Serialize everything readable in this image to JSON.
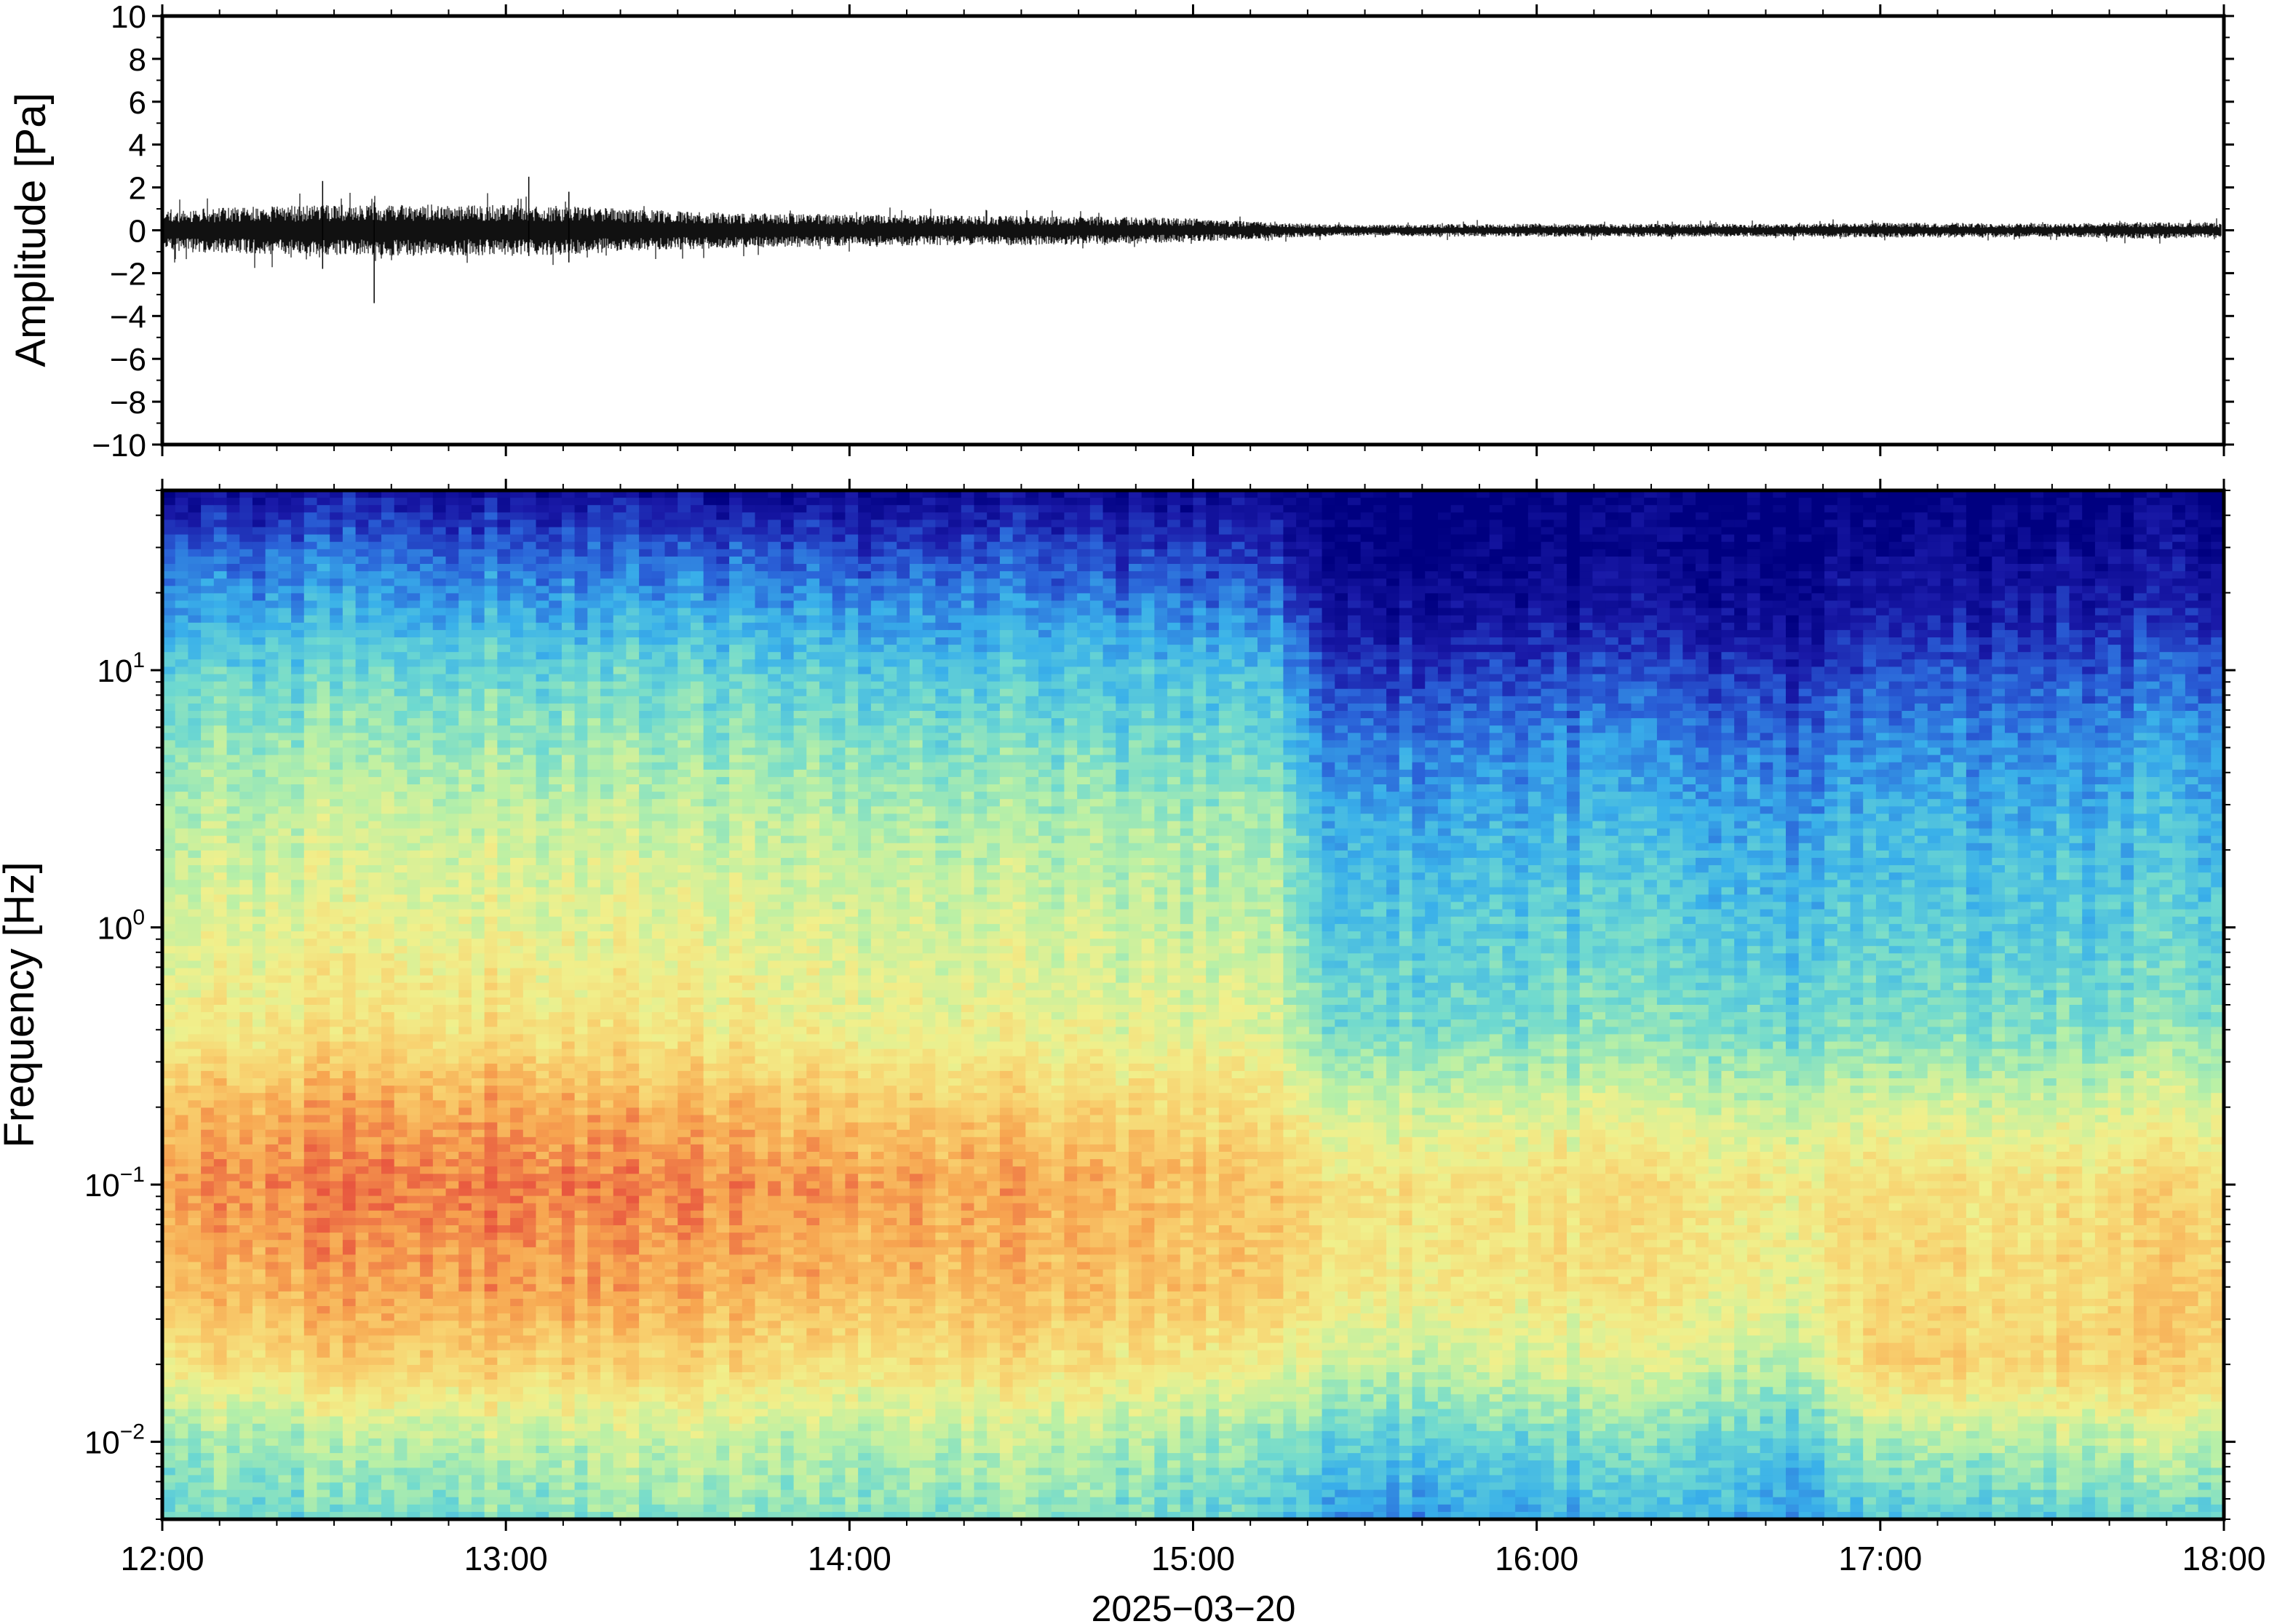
{
  "chart_data": [
    {
      "type": "line",
      "ylabel": "Amplitude [Pa]",
      "ylim": [
        -10,
        10
      ],
      "y_ticks": [
        "10",
        "8",
        "6",
        "4",
        "2",
        "0",
        "−2",
        "−4",
        "−6",
        "−8",
        "−10"
      ],
      "y_tick_values": [
        10,
        8,
        6,
        4,
        2,
        0,
        -2,
        -4,
        -6,
        -8,
        -10
      ],
      "x_range": [
        "12:00",
        "18:00"
      ],
      "envelope": {
        "time_hours": [
          12.0,
          12.25,
          12.5,
          12.75,
          13.0,
          13.25,
          13.5,
          13.75,
          14.0,
          14.25,
          14.5,
          14.75,
          15.0,
          15.25,
          15.5,
          15.75,
          16.0,
          16.25,
          16.5,
          16.75,
          17.0,
          17.25,
          17.5,
          17.75,
          18.0
        ],
        "half_range_pa": [
          1.0,
          1.1,
          1.2,
          1.2,
          1.2,
          1.1,
          0.9,
          0.8,
          0.75,
          0.7,
          0.7,
          0.65,
          0.55,
          0.35,
          0.25,
          0.3,
          0.3,
          0.3,
          0.3,
          0.3,
          0.35,
          0.35,
          0.3,
          0.4,
          0.35
        ]
      },
      "spikes": [
        {
          "time": "12:37",
          "min": -3.4,
          "max": 1.3
        },
        {
          "time": "12:28",
          "min": -1.8,
          "max": 2.3
        },
        {
          "time": "13:04",
          "min": -1.2,
          "max": 2.5
        },
        {
          "time": "13:11",
          "min": -1.5,
          "max": 1.8
        }
      ]
    },
    {
      "type": "heatmap",
      "ylabel": "Frequency [Hz]",
      "xlabel": "2025−03−20",
      "x_ticks": [
        "12:00",
        "13:00",
        "14:00",
        "15:00",
        "16:00",
        "17:00",
        "18:00"
      ],
      "y_scale": "log",
      "ylim": [
        0.005,
        50
      ],
      "y_ticks": [
        {
          "base": "10",
          "exp": "1",
          "value": 10
        },
        {
          "base": "10",
          "exp": "0",
          "value": 1
        },
        {
          "base": "10",
          "exp": "−1",
          "value": 0.1
        },
        {
          "base": "10",
          "exp": "−2",
          "value": 0.01
        }
      ],
      "colormap": [
        "#000080",
        "#1a1aa8",
        "#2a62d8",
        "#39b0ea",
        "#6ed9d0",
        "#b9f0a6",
        "#f0f08c",
        "#f8d270",
        "#f7a550",
        "#e8563f"
      ],
      "note_levels": "relative level 0..1 per frequency band, 1 = hottest colour",
      "time_hours": [
        12.0,
        12.5,
        13.0,
        13.5,
        14.0,
        14.5,
        15.0,
        15.25,
        15.35,
        15.5,
        16.0,
        16.5,
        16.75,
        17.0,
        17.5,
        18.0
      ],
      "log_freq": [
        -2.3,
        -2.0,
        -1.7,
        -1.4,
        -1.0,
        -0.7,
        -0.4,
        0.0,
        0.4,
        0.8,
        1.0,
        1.2,
        1.45,
        1.7
      ],
      "levels": [
        [
          0.45,
          0.5,
          0.7,
          0.82,
          0.9,
          0.82,
          0.68,
          0.62,
          0.56,
          0.48,
          0.42,
          0.33,
          0.22,
          0.05
        ],
        [
          0.45,
          0.55,
          0.78,
          0.88,
          0.95,
          0.88,
          0.72,
          0.66,
          0.6,
          0.5,
          0.44,
          0.35,
          0.25,
          0.08
        ],
        [
          0.48,
          0.58,
          0.78,
          0.9,
          0.96,
          0.88,
          0.74,
          0.66,
          0.6,
          0.5,
          0.44,
          0.35,
          0.24,
          0.07
        ],
        [
          0.5,
          0.58,
          0.76,
          0.86,
          0.92,
          0.84,
          0.7,
          0.64,
          0.58,
          0.48,
          0.42,
          0.34,
          0.22,
          0.05
        ],
        [
          0.48,
          0.56,
          0.72,
          0.84,
          0.9,
          0.8,
          0.67,
          0.62,
          0.56,
          0.46,
          0.4,
          0.32,
          0.2,
          0.04
        ],
        [
          0.5,
          0.58,
          0.74,
          0.84,
          0.88,
          0.78,
          0.66,
          0.61,
          0.55,
          0.45,
          0.39,
          0.31,
          0.2,
          0.06
        ],
        [
          0.44,
          0.52,
          0.7,
          0.8,
          0.82,
          0.74,
          0.63,
          0.58,
          0.52,
          0.42,
          0.37,
          0.28,
          0.16,
          0.03
        ],
        [
          0.38,
          0.45,
          0.64,
          0.76,
          0.78,
          0.7,
          0.6,
          0.55,
          0.5,
          0.4,
          0.34,
          0.25,
          0.12,
          0.02
        ],
        [
          0.32,
          0.42,
          0.6,
          0.7,
          0.72,
          0.6,
          0.46,
          0.4,
          0.34,
          0.24,
          0.18,
          0.1,
          0.03,
          0.0
        ],
        [
          0.3,
          0.42,
          0.58,
          0.7,
          0.72,
          0.6,
          0.46,
          0.4,
          0.34,
          0.24,
          0.16,
          0.08,
          0.02,
          0.0
        ],
        [
          0.34,
          0.45,
          0.62,
          0.72,
          0.74,
          0.62,
          0.48,
          0.42,
          0.36,
          0.26,
          0.18,
          0.1,
          0.03,
          0.0
        ],
        [
          0.36,
          0.45,
          0.6,
          0.7,
          0.72,
          0.6,
          0.47,
          0.4,
          0.34,
          0.24,
          0.16,
          0.08,
          0.02,
          0.0
        ],
        [
          0.3,
          0.4,
          0.55,
          0.66,
          0.7,
          0.58,
          0.45,
          0.38,
          0.32,
          0.22,
          0.14,
          0.07,
          0.01,
          0.0
        ],
        [
          0.4,
          0.55,
          0.78,
          0.76,
          0.74,
          0.62,
          0.48,
          0.42,
          0.36,
          0.27,
          0.2,
          0.12,
          0.05,
          0.0
        ],
        [
          0.42,
          0.56,
          0.76,
          0.74,
          0.72,
          0.6,
          0.47,
          0.4,
          0.35,
          0.26,
          0.2,
          0.12,
          0.05,
          0.0
        ],
        [
          0.42,
          0.6,
          0.78,
          0.8,
          0.76,
          0.64,
          0.5,
          0.42,
          0.36,
          0.28,
          0.22,
          0.14,
          0.07,
          0.01
        ]
      ]
    }
  ]
}
